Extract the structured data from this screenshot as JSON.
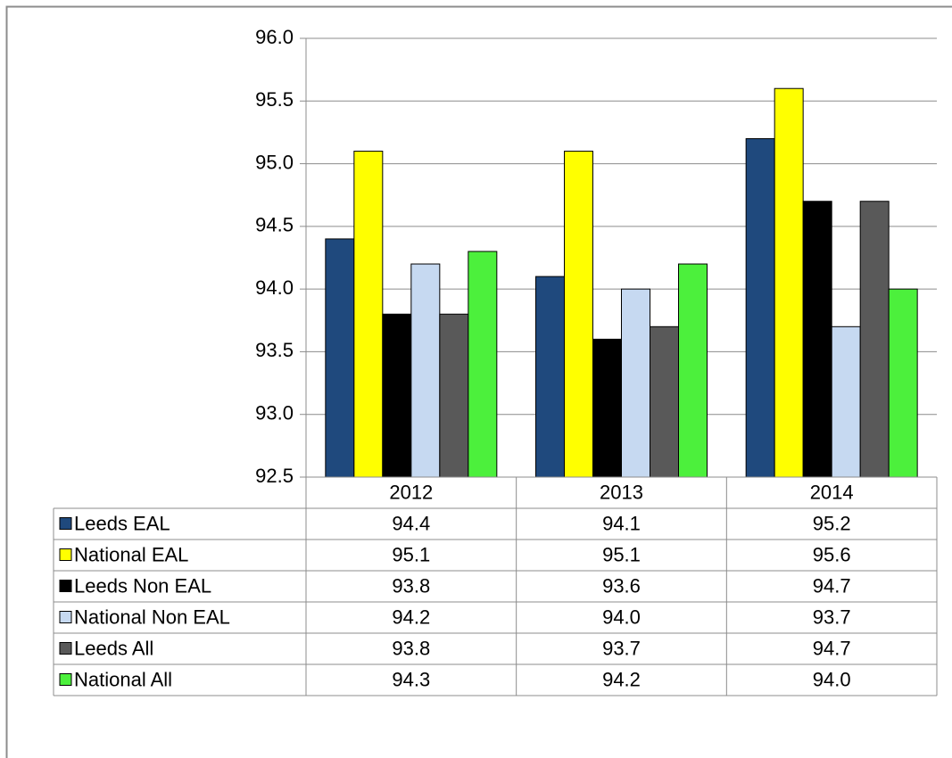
{
  "chart_data": {
    "type": "bar",
    "categories": [
      "2012",
      "2013",
      "2014"
    ],
    "series": [
      {
        "name": "Leeds EAL",
        "color": "#1f497d",
        "values": [
          94.4,
          94.1,
          95.2
        ],
        "value_labels": [
          "94.4",
          "94.1",
          "95.2"
        ]
      },
      {
        "name": "National EAL",
        "color": "#ffff00",
        "values": [
          95.1,
          95.1,
          95.6
        ],
        "value_labels": [
          "95.1",
          "95.1",
          "95.6"
        ]
      },
      {
        "name": "Leeds Non EAL",
        "color": "#000000",
        "values": [
          93.8,
          93.6,
          94.7
        ],
        "value_labels": [
          "93.8",
          "93.6",
          "94.7"
        ]
      },
      {
        "name": "National Non EAL",
        "color": "#c6d9f1",
        "values": [
          94.2,
          94,
          93.7
        ],
        "value_labels": [
          "94.2",
          "94.0",
          "93.7"
        ]
      },
      {
        "name": "Leeds All",
        "color": "#595959",
        "values": [
          93.8,
          93.7,
          94.7
        ],
        "value_labels": [
          "93.8",
          "93.7",
          "94.7"
        ]
      },
      {
        "name": "National All",
        "color": "#4cf03c",
        "values": [
          94.3,
          94.2,
          94
        ],
        "value_labels": [
          "94.3",
          "94.2",
          "94.0"
        ]
      }
    ],
    "ylim": [
      92.5,
      96
    ],
    "yticks": [
      {
        "value": 92.5,
        "label": "92.5"
      },
      {
        "value": 93,
        "label": "93.0"
      },
      {
        "value": 93.5,
        "label": "93.5"
      },
      {
        "value": 94,
        "label": "94.0"
      },
      {
        "value": 94.5,
        "label": "94.5"
      },
      {
        "value": 95,
        "label": "95.0"
      },
      {
        "value": 95.5,
        "label": "95.5"
      },
      {
        "value": 96,
        "label": "96.0"
      }
    ],
    "grid": true
  }
}
